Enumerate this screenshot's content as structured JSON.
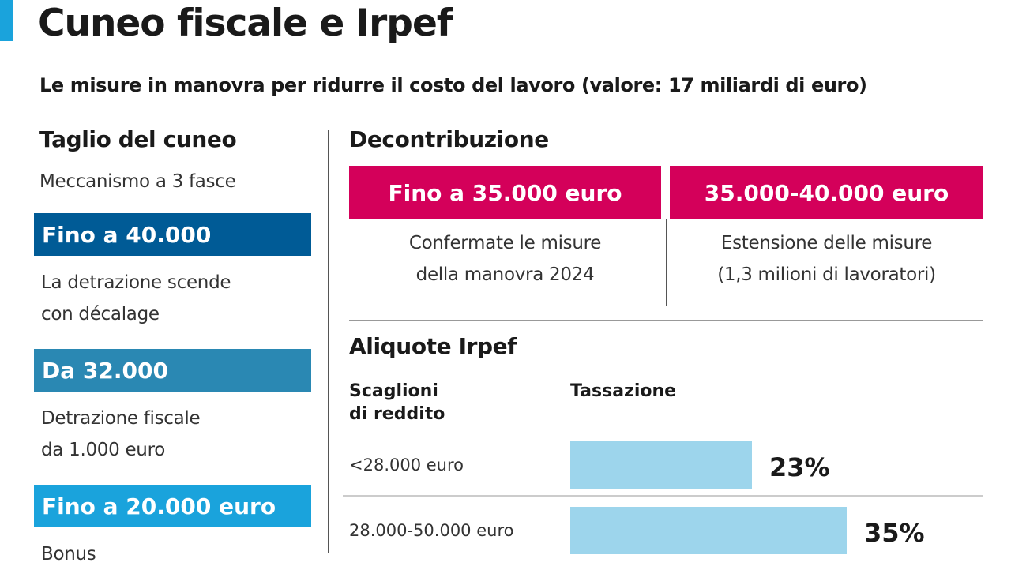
{
  "header": {
    "title": "Cuneo fiscale e Irpef",
    "subtitle": "Le misure in manovra per ridurre il costo del lavoro (valore: 17 miliardi di euro)"
  },
  "taglio": {
    "heading": "Taglio del cuneo",
    "intro": "Meccanismo a 3 fasce",
    "bands": [
      {
        "label": "Fino a 40.000",
        "color": "#005b96",
        "desc1": "La detrazione scende",
        "desc2": "con décalage"
      },
      {
        "label": "Da 32.000",
        "color": "#2a88b3",
        "desc1": "Detrazione fiscale",
        "desc2": "da 1.000 euro"
      },
      {
        "label": "Fino a 20.000 euro",
        "color": "#1aa3dc",
        "desc1": "Bonus"
      }
    ]
  },
  "decontribuzione": {
    "heading": "Decontribuzione",
    "color": "#d4005a",
    "boxes": [
      {
        "label": "Fino a 35.000 euro",
        "desc1": "Confermate le misure",
        "desc2": "della manovra 2024"
      },
      {
        "label": "35.000-40.000 euro",
        "desc1": "Estensione delle misure",
        "desc2": "(1,3 milioni di lavoratori)"
      }
    ]
  },
  "irpef": {
    "heading": "Aliquote Irpef",
    "col1_line1": "Scaglioni",
    "col1_line2": "di reddito",
    "col2": "Tassazione"
  },
  "chart_data": {
    "type": "bar",
    "orientation": "horizontal",
    "title": "Aliquote Irpef",
    "categories": [
      "<28.000 euro",
      "28.000-50.000 euro"
    ],
    "values": [
      23,
      35
    ],
    "value_labels": [
      "23%",
      "35%"
    ],
    "unit": "%",
    "bar_color": "#9dd5ec",
    "grid": false
  }
}
